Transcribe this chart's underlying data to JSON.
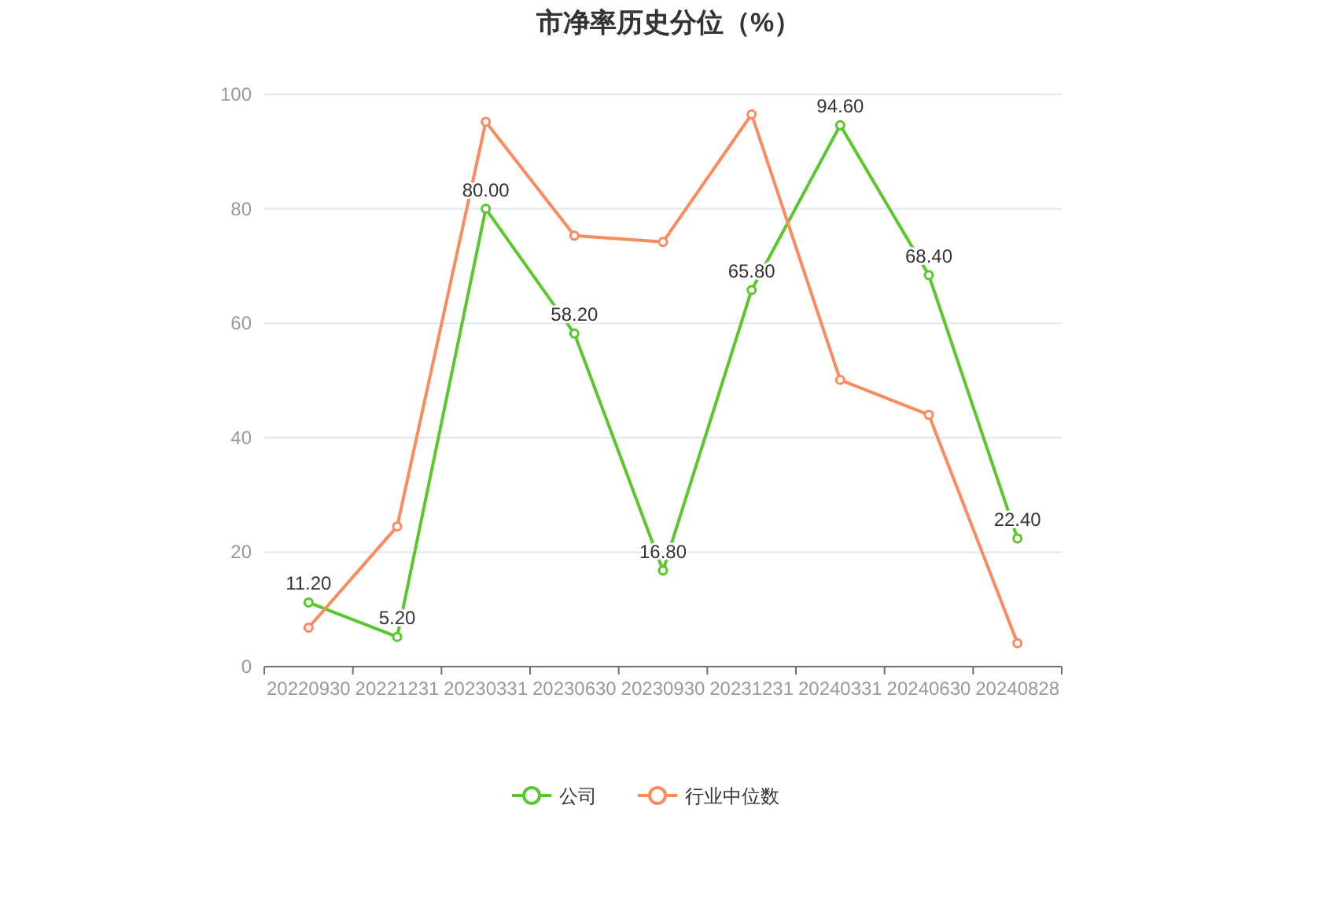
{
  "chart_data": {
    "type": "line",
    "title": "市净率历史分位（%）",
    "categories": [
      "20220930",
      "20221231",
      "20230331",
      "20230630",
      "20230930",
      "20231231",
      "20240331",
      "20240630",
      "20240828"
    ],
    "series": [
      {
        "name": "公司",
        "color": "#5ac82c",
        "values": [
          11.2,
          5.2,
          80.0,
          58.2,
          16.8,
          65.8,
          94.6,
          68.4,
          22.4
        ],
        "value_labels": [
          "11.20",
          "5.20",
          "80.00",
          "58.20",
          "16.80",
          "65.80",
          "94.60",
          "68.40",
          "22.40"
        ]
      },
      {
        "name": "行业中位数",
        "color": "#fb8a5e",
        "values": [
          6.8,
          24.5,
          95.2,
          75.3,
          74.2,
          96.5,
          50.1,
          44.0,
          4.1
        ]
      }
    ],
    "ylim": [
      0,
      100
    ],
    "yticks": [
      0,
      20,
      40,
      60,
      80,
      100
    ],
    "grid": "y",
    "legend": "bottom",
    "marker": "circle",
    "line_style": "solid"
  }
}
